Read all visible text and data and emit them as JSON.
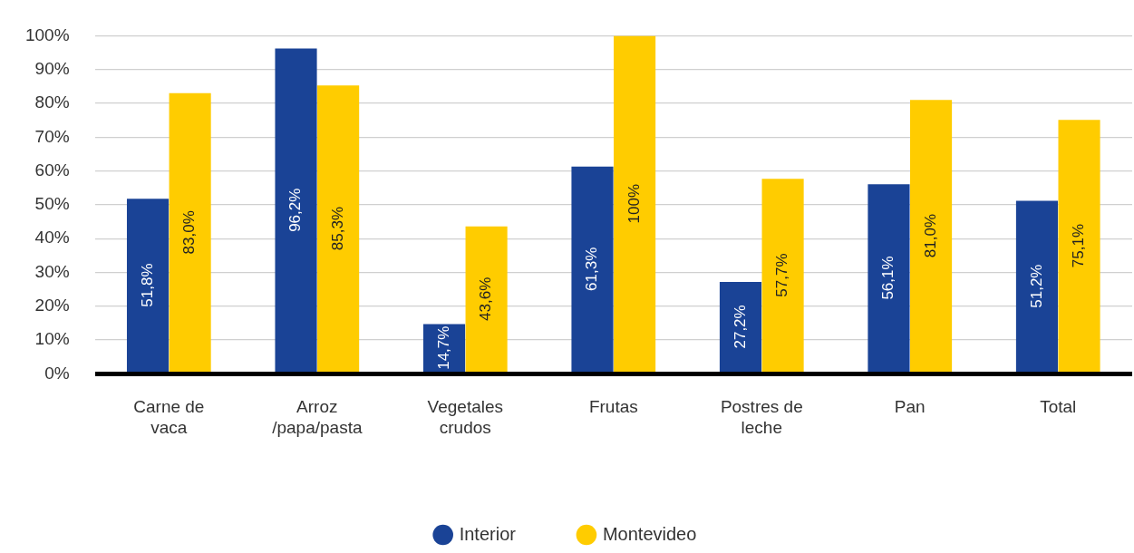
{
  "chart_data": {
    "type": "bar",
    "categories": [
      "Carne de vaca",
      "Arroz /papa/pasta",
      "Vegetales crudos",
      "Frutas",
      "Postres de leche",
      "Pan",
      "Total"
    ],
    "series": [
      {
        "name": "Interior",
        "color": "#1a4396",
        "values": [
          51.8,
          96.2,
          14.7,
          61.3,
          27.2,
          56.1,
          51.2
        ],
        "value_labels": [
          "51,8%",
          "96,2%",
          "14,7%",
          "61,3%",
          "27,2%",
          "56,1%",
          "51,2%"
        ]
      },
      {
        "name": "Montevideo",
        "color": "#ffcc00",
        "values": [
          83.0,
          85.3,
          43.6,
          100,
          57.7,
          81.0,
          75.1
        ],
        "value_labels": [
          "83,0%",
          "85,3%",
          "43,6%",
          "100%",
          "57,7%",
          "81,0%",
          "75,1%"
        ]
      }
    ],
    "ylim": [
      0,
      100
    ],
    "yticks": [
      {
        "value": 0,
        "label": "0%"
      },
      {
        "value": 10,
        "label": "10%"
      },
      {
        "value": 20,
        "label": "20%"
      },
      {
        "value": 30,
        "label": "30%"
      },
      {
        "value": 40,
        "label": "40%"
      },
      {
        "value": 50,
        "label": "50%"
      },
      {
        "value": 60,
        "label": "60%"
      },
      {
        "value": 70,
        "label": "70%"
      },
      {
        "value": 80,
        "label": "80%"
      },
      {
        "value": 90,
        "label": "90%"
      },
      {
        "value": 100,
        "label": "100%"
      }
    ],
    "grid": "y",
    "legend": "bottom",
    "marker": "circle"
  }
}
